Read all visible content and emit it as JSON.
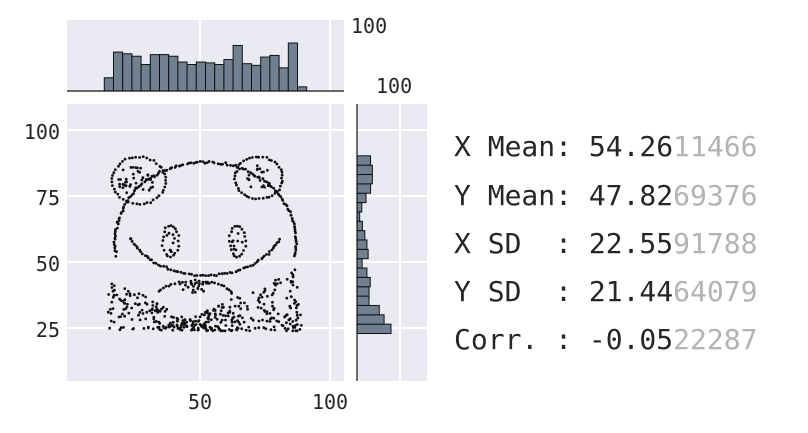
{
  "chart_data": {
    "type": "scatter",
    "title": "",
    "xlabel": "",
    "ylabel": "",
    "xlim": [
      0,
      104
    ],
    "ylim": [
      4,
      109
    ],
    "x_ticks": [
      "50",
      "100"
    ],
    "y_ticks": [
      "25",
      "50",
      "75",
      "100"
    ],
    "grid": true,
    "panel_color": "#eaeaf2",
    "point_color": "#111111",
    "hist_color": "#708090",
    "top_hist_label": "100",
    "right_hist_label": "100",
    "shape": "panda-face",
    "stats": [
      {
        "label": "X Mean: ",
        "value": "54.26",
        "faded": "11466"
      },
      {
        "label": "Y Mean: ",
        "value": "47.82",
        "faded": "69376"
      },
      {
        "label": "X SD  : ",
        "value": "22.55",
        "faded": "91788"
      },
      {
        "label": "Y SD  : ",
        "value": "21.44",
        "faded": "64079"
      },
      {
        "label": "Corr. : ",
        "value": "-0.05",
        "faded": "22287"
      }
    ]
  }
}
